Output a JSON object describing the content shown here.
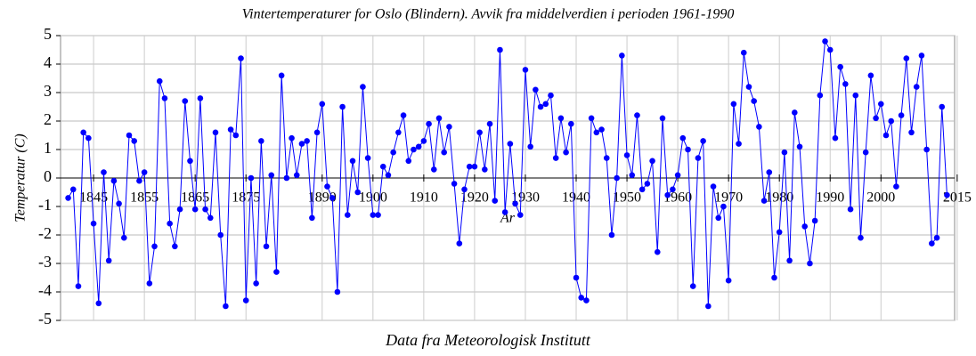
{
  "chart_data": {
    "type": "line",
    "title": "Vintertemperaturer  for  Oslo (Blindern). Avvik fra middelverdien i perioden 1961-1990",
    "y_label": "Temperatur (C)",
    "x_label": "År",
    "footer": "Data fra Meteorologisk Institutt",
    "xlim": [
      1838.5,
      2014.5
    ],
    "xticks": [
      1845,
      1855,
      1865,
      1875,
      1890,
      1900,
      1910,
      1920,
      1930,
      1940,
      1950,
      1960,
      1970,
      1980,
      1990,
      2000,
      2015
    ],
    "ylim": [
      -5,
      5
    ],
    "yticks": [
      -5,
      -4,
      -3,
      -2,
      -1,
      0,
      1,
      2,
      3,
      4,
      5
    ],
    "grid": true,
    "x": [
      1840,
      1841,
      1842,
      1843,
      1844,
      1845,
      1846,
      1847,
      1848,
      1849,
      1850,
      1851,
      1852,
      1853,
      1854,
      1855,
      1856,
      1857,
      1858,
      1859,
      1860,
      1861,
      1862,
      1863,
      1864,
      1865,
      1866,
      1867,
      1868,
      1869,
      1870,
      1871,
      1872,
      1873,
      1874,
      1875,
      1876,
      1877,
      1878,
      1879,
      1880,
      1881,
      1882,
      1883,
      1884,
      1885,
      1886,
      1887,
      1888,
      1889,
      1890,
      1891,
      1892,
      1893,
      1894,
      1895,
      1896,
      1897,
      1898,
      1899,
      1900,
      1901,
      1902,
      1903,
      1904,
      1905,
      1906,
      1907,
      1908,
      1909,
      1910,
      1911,
      1912,
      1913,
      1914,
      1915,
      1916,
      1917,
      1918,
      1919,
      1920,
      1921,
      1922,
      1923,
      1924,
      1925,
      1926,
      1927,
      1928,
      1929,
      1930,
      1931,
      1932,
      1933,
      1934,
      1935,
      1936,
      1937,
      1938,
      1939,
      1940,
      1941,
      1942,
      1943,
      1944,
      1945,
      1946,
      1947,
      1948,
      1949,
      1950,
      1951,
      1952,
      1953,
      1954,
      1955,
      1956,
      1957,
      1958,
      1959,
      1960,
      1961,
      1962,
      1963,
      1964,
      1965,
      1966,
      1967,
      1968,
      1969,
      1970,
      1971,
      1972,
      1973,
      1974,
      1975,
      1976,
      1977,
      1978,
      1979,
      1980,
      1981,
      1982,
      1983,
      1984,
      1985,
      1986,
      1987,
      1988,
      1989,
      1990,
      1991,
      1992,
      1993,
      1994,
      1995,
      1996,
      1997,
      1998,
      1999,
      2000,
      2001,
      2002,
      2003,
      2004,
      2005,
      2006,
      2007,
      2008,
      2009,
      2010,
      2011,
      2012,
      2013
    ],
    "series": [
      {
        "color": "#0000ff",
        "values": [
          -0.7,
          -0.4,
          -3.8,
          1.6,
          1.4,
          -1.6,
          -4.4,
          0.2,
          -2.9,
          -0.1,
          -0.9,
          -2.1,
          1.5,
          1.3,
          -0.1,
          0.2,
          -3.7,
          -2.4,
          3.4,
          2.8,
          -1.6,
          -2.4,
          -1.1,
          2.7,
          0.6,
          -1.1,
          2.8,
          -1.1,
          -1.4,
          1.6,
          -2.0,
          -4.5,
          1.7,
          1.5,
          4.2,
          -4.3,
          0.0,
          -3.7,
          1.3,
          -2.4,
          0.1,
          -3.3,
          3.6,
          0.0,
          1.4,
          0.1,
          1.2,
          1.3,
          -1.4,
          1.6,
          2.6,
          -0.3,
          -0.7,
          -4.0,
          2.5,
          -1.3,
          0.6,
          -0.5,
          3.2,
          0.7,
          -1.3,
          -1.3,
          0.4,
          0.1,
          0.9,
          1.6,
          2.2,
          0.6,
          1.0,
          1.1,
          1.3,
          1.9,
          0.3,
          2.1,
          0.9,
          1.8,
          -0.2,
          -2.3,
          -0.4,
          0.4,
          0.4,
          1.6,
          0.3,
          1.9,
          -0.8,
          4.5,
          -1.2,
          1.2,
          -0.9,
          -1.3,
          3.8,
          1.1,
          3.1,
          2.5,
          2.6,
          2.9,
          0.7,
          2.1,
          0.9,
          1.9,
          -3.5,
          -4.2,
          -4.3,
          2.1,
          1.6,
          1.7,
          0.7,
          -2.0,
          0.0,
          4.3,
          0.8,
          0.1,
          2.2,
          -0.4,
          -0.2,
          0.6,
          -2.6,
          2.1,
          -0.6,
          -0.4,
          0.1,
          1.4,
          1.0,
          -3.8,
          0.7,
          1.3,
          -4.5,
          -0.3,
          -1.4,
          -1.0,
          -3.6,
          2.6,
          1.2,
          4.4,
          3.2,
          2.7,
          1.8,
          -0.8,
          0.2,
          -3.5,
          -1.9,
          0.9,
          -2.9,
          2.3,
          1.1,
          -1.7,
          -3.0,
          -1.5,
          2.9,
          4.8,
          4.5,
          1.4,
          3.9,
          3.3,
          -1.1,
          2.9,
          -2.1,
          0.9,
          3.6,
          2.1,
          2.6,
          1.5,
          2.0,
          -0.3,
          2.2,
          4.2,
          1.6,
          3.2,
          4.3,
          1.0,
          -2.3,
          -2.1,
          2.5,
          -0.6
        ]
      }
    ]
  }
}
